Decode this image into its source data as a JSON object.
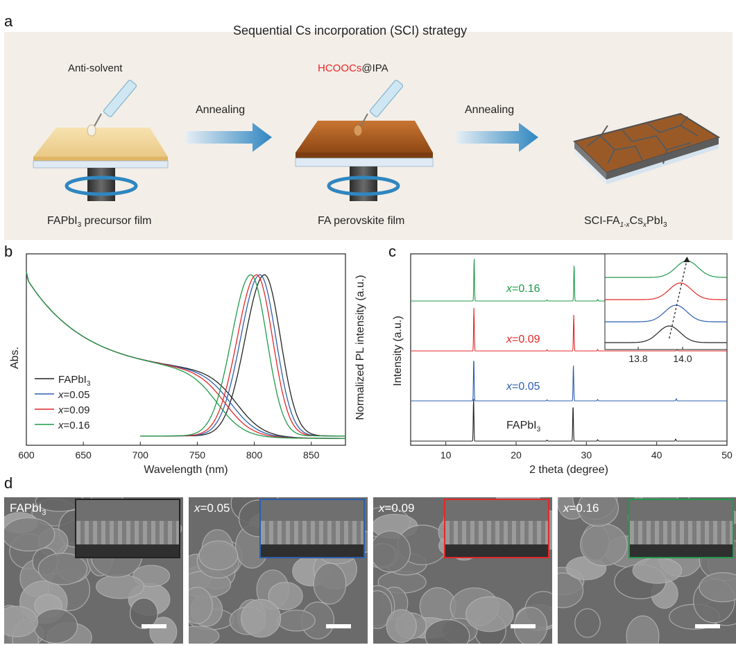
{
  "panel_letters": {
    "a": "a",
    "b": "b",
    "c": "c",
    "d": "d"
  },
  "panel_a": {
    "title": "Sequential Cs incorporation (SCI) strategy",
    "anti_solvent": "Anti-solvent",
    "hcoocs_red": "HCOOCs",
    "hcoocs_rest": "@IPA",
    "arrow1": "Annealing",
    "arrow2": "Annealing",
    "film1_a": "FAPbI",
    "film1_sub": "3",
    "film1_b": " precursor film",
    "film2": "FA perovskite film",
    "film3_a": "SCI-FA",
    "film3_sub1": "1-x",
    "film3_b": "Cs",
    "film3_sub2": "x",
    "film3_c": "PbI",
    "film3_sub3": "3"
  },
  "colors": {
    "fapbi3": "#222222",
    "x005": "#2a5fae",
    "x009": "#e32727",
    "x016": "#1f9a4a",
    "panel_bg": "#f3eee8"
  },
  "chart_data": [
    {
      "type": "line",
      "panel": "b",
      "xlabel": "Wavelength (nm)",
      "ylabel_left": "Abs.",
      "ylabel_right": "Normalized PL intensity (a.u.)",
      "xlim": [
        600,
        880
      ],
      "xticks": [
        "600",
        "650",
        "700",
        "750",
        "800",
        "850"
      ],
      "legend": [
        {
          "pre": "FAPbI",
          "sub": "3",
          "ital": "",
          "post": ""
        },
        {
          "pre": "",
          "sub": "",
          "ital": "x",
          "post": "=0.05"
        },
        {
          "pre": "",
          "sub": "",
          "ital": "x",
          "post": "=0.09"
        },
        {
          "pre": "",
          "sub": "",
          "ital": "x",
          "post": "=0.16"
        }
      ],
      "series": [
        {
          "key": "fapbi3",
          "abs_edge": 785,
          "pl_peak": 809
        },
        {
          "key": "x005",
          "abs_edge": 780,
          "pl_peak": 805
        },
        {
          "key": "x009",
          "abs_edge": 775,
          "pl_peak": 802
        },
        {
          "key": "x016",
          "abs_edge": 768,
          "pl_peak": 797
        }
      ]
    },
    {
      "type": "line",
      "panel": "c",
      "xlabel": "2 theta (degree)",
      "ylabel": "Intensity (a.u.)",
      "xlim": [
        5,
        50
      ],
      "xticks": [
        "10",
        "20",
        "30",
        "40",
        "50"
      ],
      "inset_xticks": [
        "13.8",
        "14.0"
      ],
      "inset_xlim": [
        13.65,
        14.2
      ],
      "series": [
        {
          "key": "fapbi3",
          "label_pre": "FAPbI",
          "label_sub": "3",
          "label_ital": "",
          "label_post": "",
          "peaks": [
            13.95,
            28.1,
            42.7
          ],
          "inset_peak": 13.94
        },
        {
          "key": "x005",
          "label_pre": "",
          "label_sub": "",
          "label_ital": "x",
          "label_post": "=0.05",
          "peaks": [
            13.98,
            28.15,
            42.8
          ],
          "inset_peak": 13.97
        },
        {
          "key": "x009",
          "label_pre": "",
          "label_sub": "",
          "label_ital": "x",
          "label_post": "=0.09",
          "peaks": [
            14.0,
            28.2,
            42.9
          ],
          "inset_peak": 13.99
        },
        {
          "key": "x016",
          "label_pre": "",
          "label_sub": "",
          "label_ital": "x",
          "label_post": "=0.16",
          "peaks": [
            14.03,
            28.25,
            43.0
          ],
          "inset_peak": 14.02
        }
      ]
    }
  ],
  "panel_d": [
    {
      "key": "fapbi3",
      "pre": "FAPbI",
      "sub": "3",
      "ital": "",
      "post": ""
    },
    {
      "key": "x005",
      "pre": "",
      "sub": "",
      "ital": "x",
      "post": "=0.05"
    },
    {
      "key": "x009",
      "pre": "",
      "sub": "",
      "ital": "x",
      "post": "=0.09"
    },
    {
      "key": "x016",
      "pre": "",
      "sub": "",
      "ital": "x",
      "post": "=0.16"
    }
  ]
}
